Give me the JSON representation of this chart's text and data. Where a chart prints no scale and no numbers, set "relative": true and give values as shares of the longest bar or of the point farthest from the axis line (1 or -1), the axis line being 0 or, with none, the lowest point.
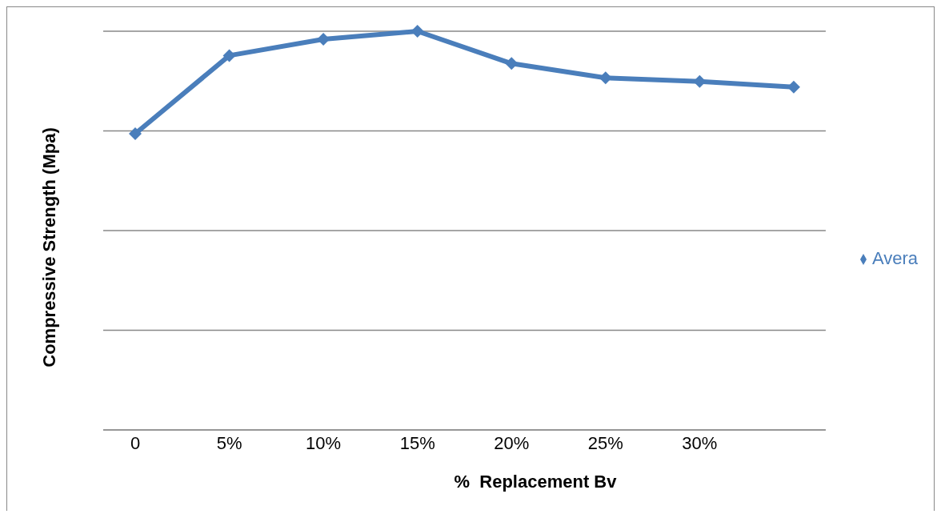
{
  "chart_data": {
    "type": "line",
    "xlabel": "%  Replacement Bv",
    "ylabel": "Compressive Strength (Mpa)",
    "relative": true,
    "categories": [
      "0",
      "5%",
      "10%",
      "15%",
      "20%",
      "25%",
      "30%",
      null
    ],
    "series": [
      {
        "name": "Avera",
        "color": "#4a7ebb",
        "values": [
          0.743,
          0.939,
          0.98,
          1,
          0.919,
          0.883,
          0.874,
          0.86
        ]
      }
    ],
    "marker": "diamond",
    "grid": "y",
    "legend": "right"
  }
}
